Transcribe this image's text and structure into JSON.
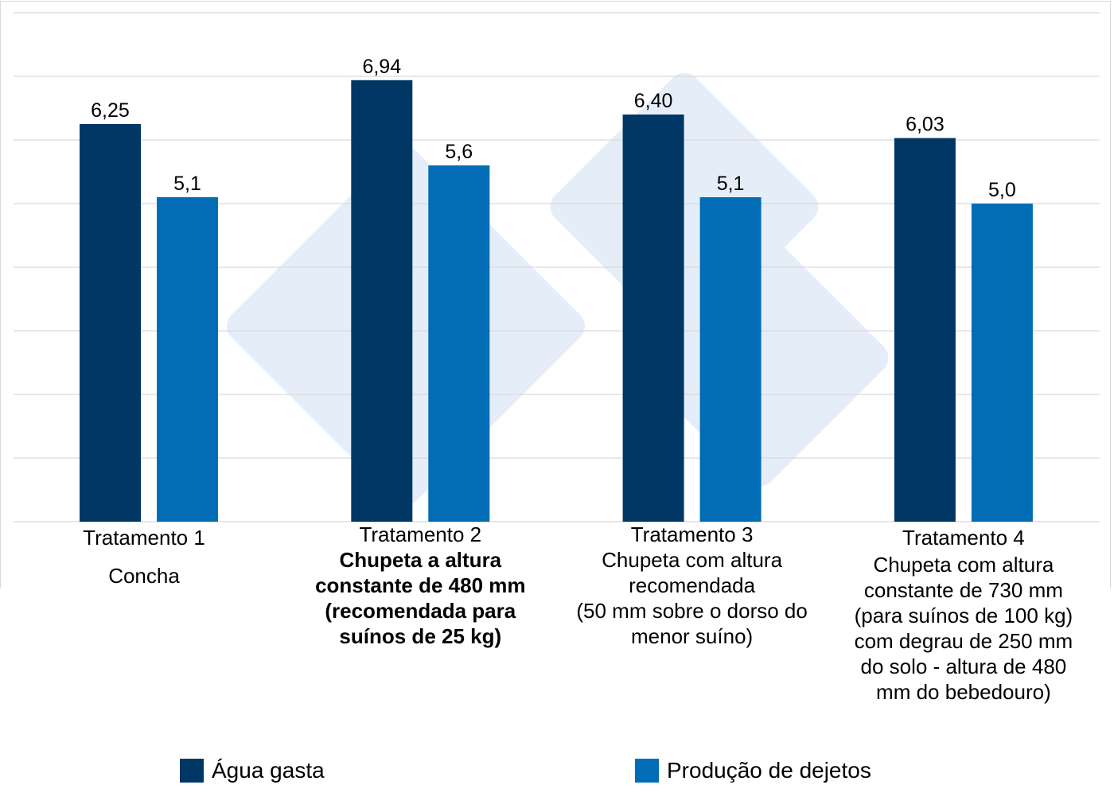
{
  "chart_data": {
    "type": "bar",
    "categories": [
      "Tratamento 1",
      "Tratamento 2",
      "Tratamento 3",
      "Tratamento 4"
    ],
    "category_descriptions": [
      "Concha",
      "Chupeta a altura\nconstante de 480 mm\n(recomendada para\nsuínos de 25 kg)",
      "Chupeta com altura\nrecomendada\n(50 mm sobre o dorso do\nmenor suíno)",
      "Chupeta com altura\nconstante de 730 mm\n(para suínos de 100 kg)\ncom degrau de 250 mm\ndo solo - altura de 480\nmm do bebedouro)"
    ],
    "series": [
      {
        "name": "Água gasta",
        "values": [
          6.25,
          6.94,
          6.4,
          6.03
        ],
        "labels": [
          "6,25",
          "6,94",
          "6,40",
          "6,03"
        ],
        "color": "#003764"
      },
      {
        "name": "Produção de dejetos",
        "values": [
          5.1,
          5.6,
          5.1,
          5.0
        ],
        "labels": [
          "5,1",
          "5,6",
          "5,1",
          "5,0"
        ],
        "color": "#006db6"
      }
    ],
    "ylim": [
      0,
      8
    ],
    "grid": true,
    "y_axis_visible": false,
    "legend_position": "bottom",
    "watermark": "333 logo"
  }
}
